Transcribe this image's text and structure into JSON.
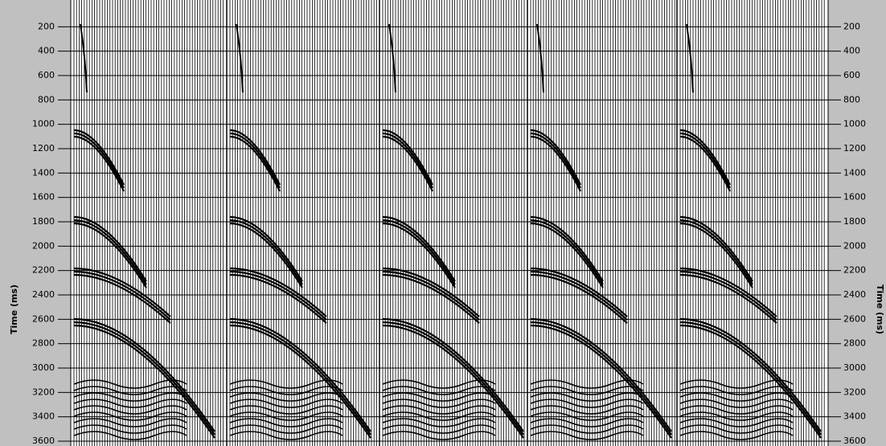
{
  "chart_data": {
    "type": "seismic",
    "y_label": "Time (ms)",
    "ylim": [
      0,
      3600
    ],
    "yticks": [
      200,
      400,
      600,
      800,
      1000,
      1200,
      1400,
      1600,
      1800,
      2000,
      2200,
      2400,
      2600,
      2800,
      3000,
      3200,
      3400,
      3600
    ],
    "grid": true
  }
}
